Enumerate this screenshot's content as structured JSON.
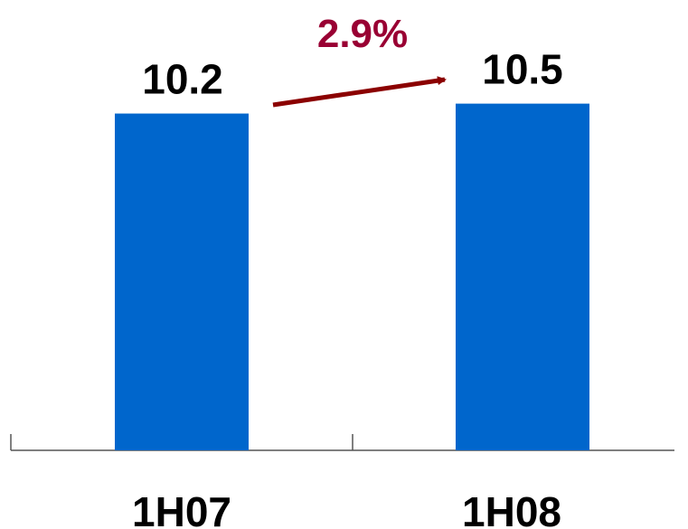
{
  "chart_data": {
    "type": "bar",
    "categories": [
      "1H07",
      "1H08"
    ],
    "values": [
      10.2,
      10.5
    ],
    "data_labels": [
      "10.2",
      "10.5"
    ],
    "annotation": {
      "text": "2.9%",
      "from": "1H07",
      "to": "1H08"
    },
    "title": "",
    "xlabel": "",
    "ylabel": "",
    "ylim": [
      0,
      10.9
    ],
    "grid": false,
    "legend": "none",
    "colors": {
      "bar": "#0066CC",
      "arrow": "#8B0000",
      "annotation": "#990033",
      "axis": "#555555"
    }
  }
}
